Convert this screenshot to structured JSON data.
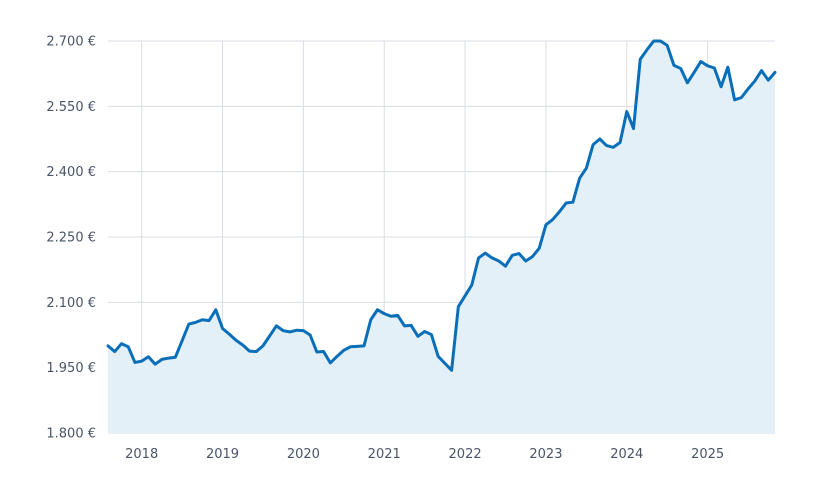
{
  "chart_data": {
    "type": "area",
    "title": "",
    "xlabel": "",
    "ylabel": "",
    "ylim": [
      1800,
      2700
    ],
    "xlim": [
      "2017-08",
      "2025-11"
    ],
    "grid": true,
    "legend": "none",
    "colors": {
      "line": "#0a6fb8",
      "fill": "#e3f0f8",
      "grid": "#d9dde3",
      "text": "#4a5568"
    },
    "y_ticks": [
      {
        "value": 1800,
        "label": "1.800 €"
      },
      {
        "value": 1950,
        "label": "1.950 €"
      },
      {
        "value": 2100,
        "label": "2.100 €"
      },
      {
        "value": 2250,
        "label": "2.250 €"
      },
      {
        "value": 2400,
        "label": "2.400 €"
      },
      {
        "value": 2550,
        "label": "2.550 €"
      },
      {
        "value": 2700,
        "label": "2.700 €"
      }
    ],
    "x_ticks": [
      {
        "value": "2018-01",
        "label": "2018"
      },
      {
        "value": "2019-01",
        "label": "2019"
      },
      {
        "value": "2020-01",
        "label": "2020"
      },
      {
        "value": "2021-01",
        "label": "2021"
      },
      {
        "value": "2022-01",
        "label": "2022"
      },
      {
        "value": "2023-01",
        "label": "2023"
      },
      {
        "value": "2024-01",
        "label": "2024"
      },
      {
        "value": "2025-01",
        "label": "2025"
      }
    ],
    "series": [
      {
        "x": [
          "2017-08",
          "2017-09",
          "2017-10",
          "2017-11",
          "2017-12",
          "2018-01",
          "2018-02",
          "2018-03",
          "2018-04",
          "2018-05",
          "2018-06",
          "2018-07",
          "2018-08",
          "2018-09",
          "2018-10",
          "2018-11",
          "2018-12",
          "2019-01",
          "2019-02",
          "2019-03",
          "2019-04",
          "2019-05",
          "2019-06",
          "2019-07",
          "2019-08",
          "2019-09",
          "2019-10",
          "2019-11",
          "2019-12",
          "2020-01",
          "2020-02",
          "2020-03",
          "2020-04",
          "2020-05",
          "2020-06",
          "2020-07",
          "2020-08",
          "2020-09",
          "2020-10",
          "2020-11",
          "2020-12",
          "2021-01",
          "2021-02",
          "2021-03",
          "2021-04",
          "2021-05",
          "2021-06",
          "2021-07",
          "2021-08",
          "2021-09",
          "2021-10",
          "2021-11",
          "2021-12",
          "2022-01",
          "2022-02",
          "2022-03",
          "2022-04",
          "2022-05",
          "2022-06",
          "2022-07",
          "2022-08",
          "2022-09",
          "2022-10",
          "2022-11",
          "2022-12",
          "2023-01",
          "2023-02",
          "2023-03",
          "2023-04",
          "2023-05",
          "2023-06",
          "2023-07",
          "2023-08",
          "2023-09",
          "2023-10",
          "2023-11",
          "2023-12",
          "2024-01",
          "2024-02",
          "2024-03",
          "2024-04",
          "2024-05",
          "2024-06",
          "2024-07",
          "2024-08",
          "2024-09",
          "2024-10",
          "2024-11",
          "2024-12",
          "2025-01",
          "2025-02",
          "2025-03",
          "2025-04",
          "2025-05",
          "2025-06",
          "2025-07",
          "2025-08",
          "2025-09",
          "2025-10",
          "2025-11"
        ],
        "values": [
          2000,
          1987,
          2005,
          1998,
          1962,
          1965,
          1975,
          1958,
          1969,
          1972,
          1974,
          2012,
          2050,
          2054,
          2060,
          2058,
          2083,
          2040,
          2027,
          2013,
          2002,
          1988,
          1987,
          2000,
          2023,
          2046,
          2035,
          2032,
          2036,
          2035,
          2025,
          1986,
          1987,
          1961,
          1976,
          1990,
          1998,
          1999,
          2000,
          2060,
          2083,
          2074,
          2068,
          2070,
          2046,
          2047,
          2022,
          2033,
          2026,
          1976,
          1960,
          1944,
          2090,
          2115,
          2140,
          2202,
          2213,
          2202,
          2195,
          2183,
          2208,
          2212,
          2195,
          2205,
          2224,
          2278,
          2290,
          2308,
          2328,
          2330,
          2385,
          2408,
          2462,
          2475,
          2460,
          2456,
          2467,
          2538,
          2499,
          2658,
          2680,
          2700,
          2700,
          2690,
          2644,
          2637,
          2604,
          2628,
          2653,
          2643,
          2638,
          2595,
          2640,
          2565,
          2570,
          2590,
          2608,
          2632,
          2610,
          2628
        ]
      }
    ]
  }
}
